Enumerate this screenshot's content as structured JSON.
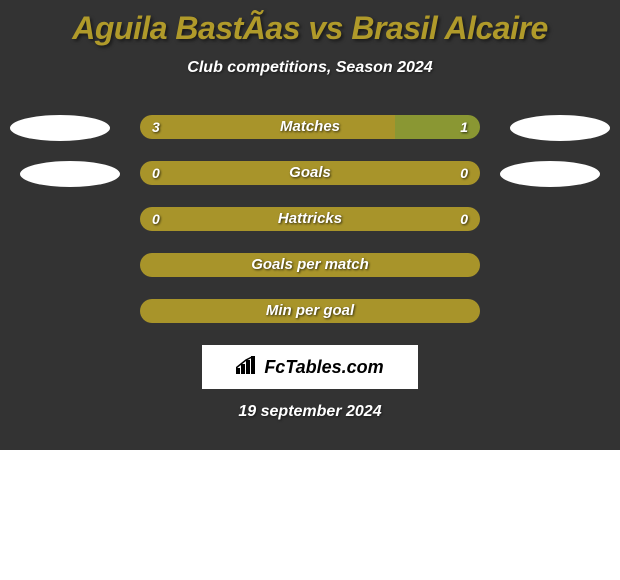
{
  "header": {
    "title": "Aguila BastÃ­as vs Brasil Alcaire",
    "subtitle": "Club competitions, Season 2024"
  },
  "bars": [
    {
      "label": "Matches",
      "left_value": "3",
      "right_value": "1",
      "left_pct": 75,
      "right_pct": 25,
      "left_color": "#a8942a",
      "right_color": "#8a9733",
      "show_values": true
    },
    {
      "label": "Goals",
      "left_value": "0",
      "right_value": "0",
      "left_pct": 100,
      "right_pct": 0,
      "left_color": "#a8942a",
      "right_color": "#8a9733",
      "show_values": true
    },
    {
      "label": "Hattricks",
      "left_value": "0",
      "right_value": "0",
      "left_pct": 100,
      "right_pct": 0,
      "left_color": "#a8942a",
      "right_color": "#8a9733",
      "show_values": true
    },
    {
      "label": "Goals per match",
      "left_value": "",
      "right_value": "",
      "left_pct": 100,
      "right_pct": 0,
      "left_color": "#a8942a",
      "right_color": "#8a9733",
      "show_values": false
    },
    {
      "label": "Min per goal",
      "left_value": "",
      "right_value": "",
      "left_pct": 100,
      "right_pct": 0,
      "left_color": "#a8942a",
      "right_color": "#8a9733",
      "show_values": false
    }
  ],
  "logo": {
    "text": "FcTables.com"
  },
  "footer": {
    "date": "19 september 2024"
  },
  "colors": {
    "background": "#333333",
    "title_color": "#b09a2a",
    "text_color": "#ffffff",
    "ellipse_color": "#ffffff",
    "logo_bg": "#ffffff"
  }
}
